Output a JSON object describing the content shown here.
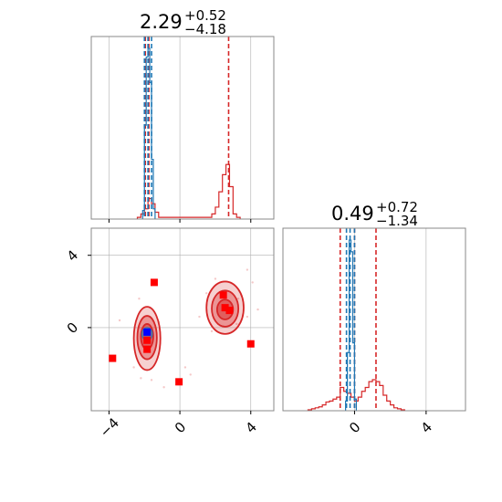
{
  "colors": {
    "red": "#d62728",
    "blue": "#1f77b4",
    "grid": "#b0b0b0",
    "frame": "#888888"
  },
  "chart_data": [
    {
      "type": "histogram",
      "panel": "marginal-x",
      "title": {
        "value": "2.29",
        "upper": "+0.52",
        "lower": "−4.18"
      },
      "xlim": [
        -5,
        5.3
      ],
      "xticks": [
        -4,
        0,
        4
      ],
      "grid": true,
      "series": [
        {
          "color": "red",
          "bin_width": 0.2,
          "bins": [
            [
              -2.4,
              0.01
            ],
            [
              -2.2,
              0.03
            ],
            [
              -2.0,
              0.06
            ],
            [
              -1.8,
              0.12
            ],
            [
              -1.6,
              0.09
            ],
            [
              -1.4,
              0.04
            ],
            [
              -1.2,
              0.01
            ],
            [
              1.6,
              0.01
            ],
            [
              1.8,
              0.03
            ],
            [
              2.0,
              0.07
            ],
            [
              2.2,
              0.16
            ],
            [
              2.4,
              0.26
            ],
            [
              2.6,
              0.32
            ],
            [
              2.8,
              0.19
            ],
            [
              3.0,
              0.03
            ],
            [
              3.2,
              0.01
            ]
          ],
          "quantile_lines": [
            -1.95,
            -1.75,
            2.75
          ]
        },
        {
          "color": "blue",
          "bin_width": 0.1,
          "bins": [
            [
              -2.1,
              0.05
            ],
            [
              -2.0,
              0.55
            ],
            [
              -1.9,
              0.95
            ],
            [
              -1.8,
              1.0
            ],
            [
              -1.7,
              0.8
            ],
            [
              -1.6,
              0.35
            ],
            [
              -1.5,
              0.06
            ]
          ],
          "quantile_lines": [
            -2.0,
            -1.8,
            -1.6
          ]
        }
      ]
    },
    {
      "type": "histogram",
      "panel": "marginal-y",
      "title": {
        "value": "0.49",
        "upper": "+0.72",
        "lower": "−1.34"
      },
      "xlim": [
        -4.0,
        6.2
      ],
      "xticks": [
        0,
        4
      ],
      "grid": true,
      "series": [
        {
          "color": "red",
          "bin_width": 0.2,
          "bins": [
            [
              -2.6,
              0.005
            ],
            [
              -2.4,
              0.01
            ],
            [
              -2.2,
              0.015
            ],
            [
              -2.0,
              0.02
            ],
            [
              -1.8,
              0.03
            ],
            [
              -1.6,
              0.045
            ],
            [
              -1.4,
              0.05
            ],
            [
              -1.2,
              0.06
            ],
            [
              -1.0,
              0.07
            ],
            [
              -0.8,
              0.12
            ],
            [
              -0.6,
              0.1
            ],
            [
              -0.4,
              0.09
            ],
            [
              -0.2,
              0.07
            ],
            [
              0.0,
              0.05
            ],
            [
              0.2,
              0.07
            ],
            [
              0.4,
              0.1
            ],
            [
              0.6,
              0.12
            ],
            [
              0.8,
              0.15
            ],
            [
              1.0,
              0.16
            ],
            [
              1.2,
              0.15
            ],
            [
              1.4,
              0.13
            ],
            [
              1.6,
              0.08
            ],
            [
              1.8,
              0.05
            ],
            [
              2.0,
              0.03
            ],
            [
              2.2,
              0.015
            ],
            [
              2.4,
              0.01
            ],
            [
              2.6,
              0.005
            ]
          ],
          "quantile_lines": [
            -0.8,
            0.0,
            1.2
          ]
        },
        {
          "color": "blue",
          "bin_width": 0.1,
          "bins": [
            [
              -0.5,
              0.05
            ],
            [
              -0.4,
              0.3
            ],
            [
              -0.3,
              0.88
            ],
            [
              -0.2,
              0.82
            ],
            [
              -0.1,
              0.35
            ],
            [
              0.0,
              0.06
            ]
          ],
          "quantile_lines": [
            -0.45,
            -0.25,
            0.0
          ]
        }
      ]
    },
    {
      "type": "scatter",
      "panel": "joint",
      "xlim": [
        -5,
        5.3
      ],
      "ylim": [
        -4.6,
        5.5
      ],
      "xticks": [
        -4,
        0,
        4
      ],
      "yticks": [
        0,
        4
      ],
      "grid": true,
      "contours_red": [
        {
          "cx": -1.85,
          "cy": -0.6,
          "rx": 0.75,
          "ry": 1.75,
          "level": 1
        },
        {
          "cx": -1.85,
          "cy": -0.55,
          "rx": 0.55,
          "ry": 1.2,
          "level": 2
        },
        {
          "cx": -1.85,
          "cy": -0.5,
          "rx": 0.35,
          "ry": 0.7,
          "level": 3
        },
        {
          "cx": 2.55,
          "cy": 1.1,
          "rx": 1.05,
          "ry": 1.45,
          "level": 1
        },
        {
          "cx": 2.55,
          "cy": 1.05,
          "rx": 0.75,
          "ry": 1.0,
          "level": 2
        },
        {
          "cx": 2.55,
          "cy": 1.0,
          "rx": 0.45,
          "ry": 0.55,
          "level": 3
        }
      ],
      "contour_blue": {
        "cx": -1.85,
        "cy": -0.35,
        "rx": 0.3,
        "ry": 0.35
      },
      "red_markers": [
        [
          -1.45,
          2.5
        ],
        [
          -3.8,
          -1.7
        ],
        [
          -0.05,
          -3.0
        ],
        [
          4.0,
          -0.9
        ],
        [
          2.45,
          1.8
        ],
        [
          2.55,
          1.1
        ],
        [
          2.8,
          0.95
        ],
        [
          -1.85,
          -1.2
        ],
        [
          -1.85,
          -0.7
        ]
      ],
      "blue_markers": [
        [
          -1.85,
          -0.25
        ]
      ],
      "faint_points": [
        [
          -2.2,
          -2.8
        ],
        [
          -1.6,
          -2.9
        ],
        [
          -0.9,
          -3.3
        ],
        [
          -2.3,
          1.6
        ],
        [
          -1.2,
          0.3
        ],
        [
          -2.6,
          -2.2
        ],
        [
          0.3,
          -2.2
        ],
        [
          3.8,
          3.2
        ],
        [
          4.1,
          2.5
        ],
        [
          3.2,
          0.2
        ],
        [
          1.5,
          1.9
        ],
        [
          3.8,
          0.6
        ],
        [
          1.8,
          -0.2
        ],
        [
          0.6,
          -2.6
        ],
        [
          -3.4,
          0.4
        ],
        [
          3.3,
          1.6
        ],
        [
          2.0,
          2.7
        ],
        [
          4.4,
          1.0
        ],
        [
          1.1,
          0.6
        ]
      ]
    }
  ]
}
